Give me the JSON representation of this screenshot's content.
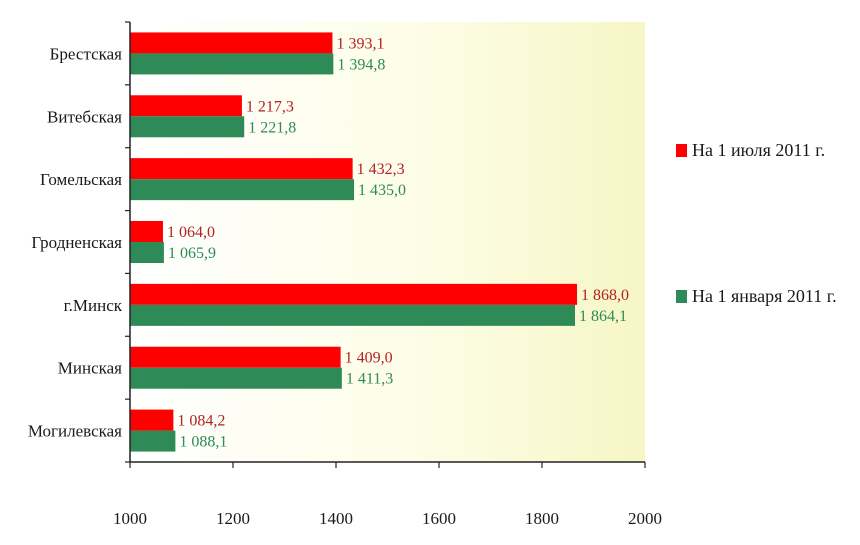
{
  "chart_data": {
    "type": "bar",
    "orientation": "horizontal",
    "categories": [
      "Брестская",
      "Витебская",
      "Гомельская",
      "Гродненская",
      "г.Минск",
      "Минская",
      "Могилевская"
    ],
    "series": [
      {
        "name": "На 1 июля 2011 г.",
        "color": "#ff0000",
        "label_color": "#b22222",
        "values": [
          1393.1,
          1217.3,
          1432.3,
          1064.0,
          1868.0,
          1409.0,
          1084.2
        ],
        "labels": [
          "1 393,1",
          "1 217,3",
          "1 432,3",
          "1 064,0",
          "1 868,0",
          "1 409,0",
          "1 084,2"
        ]
      },
      {
        "name": "На 1 января 2011 г.",
        "color": "#2e8b57",
        "label_color": "#2e8b57",
        "values": [
          1394.8,
          1221.8,
          1435.0,
          1065.9,
          1864.1,
          1411.3,
          1088.1
        ],
        "labels": [
          "1 394,8",
          "1 221,8",
          "1 435,0",
          "1 065,9",
          "1 864,1",
          "1 411,3",
          "1 088,1"
        ]
      }
    ],
    "xlim": [
      1000,
      2000
    ],
    "xticks": [
      1000,
      1200,
      1400,
      1600,
      1800,
      2000
    ],
    "legend_position": "right",
    "grid": false
  }
}
